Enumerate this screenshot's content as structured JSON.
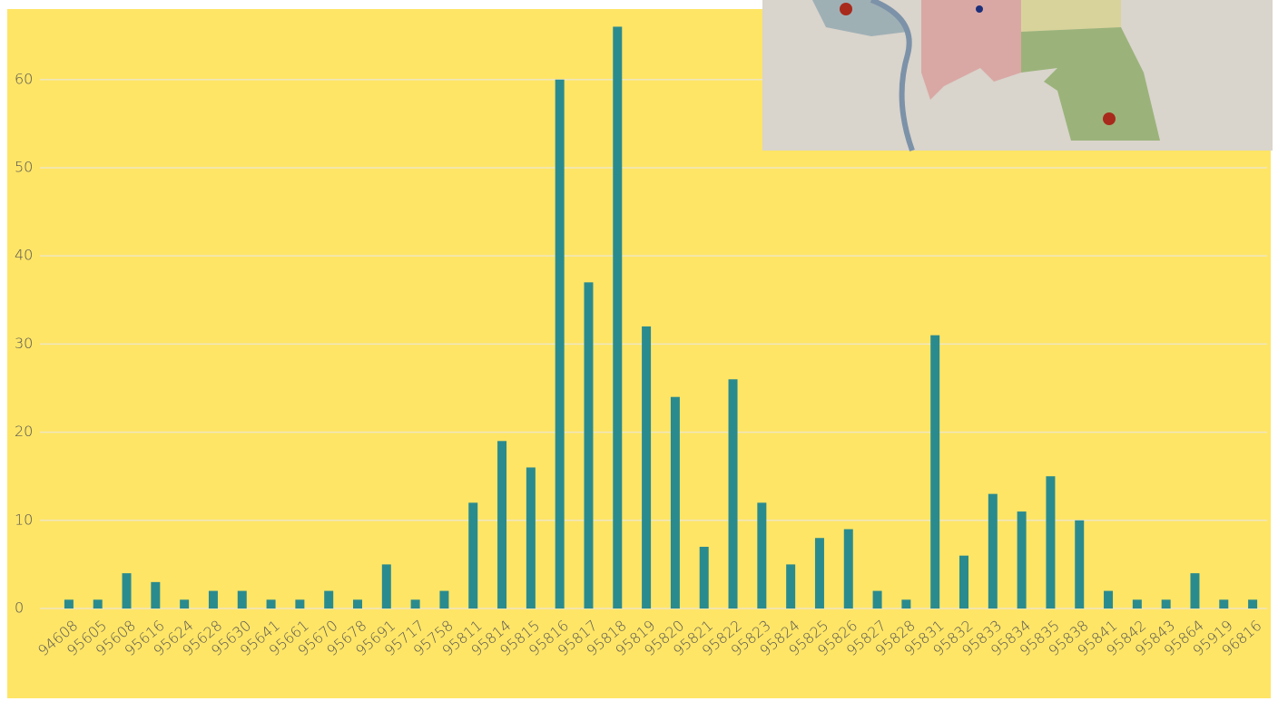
{
  "chart_data": {
    "type": "bar",
    "categories": [
      "94608",
      "95605",
      "95608",
      "95616",
      "95624",
      "95628",
      "95630",
      "95641",
      "95661",
      "95670",
      "95678",
      "95691",
      "95717",
      "95758",
      "95811",
      "95814",
      "95815",
      "95816",
      "95817",
      "95818",
      "95819",
      "95820",
      "95821",
      "95822",
      "95823",
      "95824",
      "95825",
      "95826",
      "95827",
      "95828",
      "95831",
      "95832",
      "95833",
      "95834",
      "95835",
      "95838",
      "95841",
      "95842",
      "95843",
      "95864",
      "95919",
      "96816"
    ],
    "values": [
      1,
      1,
      4,
      3,
      1,
      2,
      2,
      1,
      1,
      2,
      1,
      5,
      1,
      2,
      12,
      19,
      16,
      60,
      37,
      66,
      32,
      24,
      7,
      26,
      12,
      5,
      8,
      9,
      2,
      1,
      31,
      6,
      13,
      11,
      15,
      10,
      2,
      1,
      1,
      4,
      1,
      1
    ],
    "color": "#2a8b8f",
    "ylim": [
      0,
      68
    ],
    "yticks": [
      0,
      10,
      20,
      30,
      40,
      50,
      60
    ],
    "grid": true
  }
}
